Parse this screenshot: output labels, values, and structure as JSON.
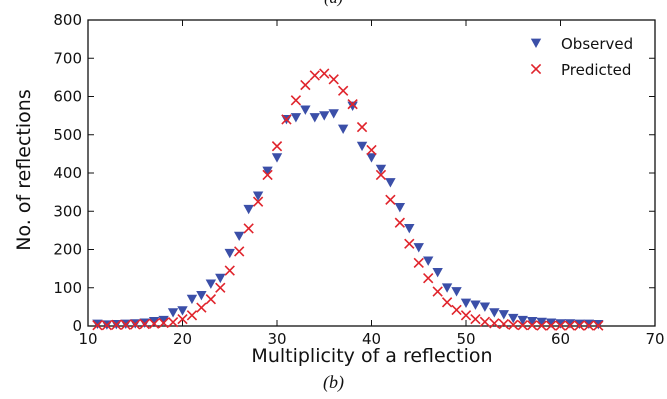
{
  "figure": {
    "top_caption": "(a)",
    "caption": "(b)"
  },
  "chart_data": {
    "type": "scatter",
    "title": "",
    "xlabel": "Multiplicity of a reflection",
    "ylabel": "No. of reflections",
    "xlim": [
      10,
      70
    ],
    "ylim": [
      0,
      800
    ],
    "x_ticks": [
      "10",
      "20",
      "30",
      "40",
      "50",
      "60",
      "70"
    ],
    "y_ticks": [
      "0",
      "100",
      "200",
      "300",
      "400",
      "500",
      "600",
      "700",
      "800"
    ],
    "grid": false,
    "legend_position": "top-right",
    "series": [
      {
        "name": "Observed",
        "marker": "triangle-down",
        "color": "#3b4fa8",
        "x": [
          11,
          12,
          13,
          14,
          15,
          16,
          17,
          18,
          19,
          20,
          21,
          22,
          23,
          24,
          25,
          26,
          27,
          28,
          29,
          30,
          31,
          32,
          33,
          34,
          35,
          36,
          37,
          38,
          39,
          40,
          41,
          42,
          43,
          44,
          45,
          46,
          47,
          48,
          49,
          50,
          51,
          52,
          53,
          54,
          55,
          56,
          57,
          58,
          59,
          60,
          61,
          62,
          63,
          64
        ],
        "y": [
          5,
          3,
          4,
          5,
          6,
          8,
          12,
          15,
          35,
          40,
          70,
          80,
          110,
          125,
          190,
          235,
          305,
          340,
          405,
          440,
          540,
          545,
          565,
          545,
          550,
          555,
          515,
          575,
          470,
          440,
          410,
          375,
          310,
          255,
          205,
          170,
          140,
          100,
          90,
          60,
          55,
          50,
          35,
          30,
          20,
          15,
          12,
          10,
          8,
          6,
          6,
          5,
          5,
          4
        ]
      },
      {
        "name": "Predicted",
        "marker": "x",
        "color": "#e0242c",
        "x": [
          11,
          12,
          13,
          14,
          15,
          16,
          17,
          18,
          19,
          20,
          21,
          22,
          23,
          24,
          25,
          26,
          27,
          28,
          29,
          30,
          31,
          32,
          33,
          34,
          35,
          36,
          37,
          38,
          39,
          40,
          41,
          42,
          43,
          44,
          45,
          46,
          47,
          48,
          49,
          50,
          51,
          52,
          53,
          54,
          55,
          56,
          57,
          58,
          59,
          60,
          61,
          62,
          63,
          64
        ],
        "y": [
          2,
          2,
          3,
          3,
          4,
          5,
          6,
          8,
          10,
          18,
          28,
          48,
          70,
          100,
          145,
          195,
          255,
          325,
          395,
          470,
          540,
          590,
          630,
          655,
          660,
          645,
          615,
          580,
          520,
          460,
          395,
          330,
          270,
          215,
          165,
          125,
          90,
          62,
          42,
          28,
          18,
          11,
          7,
          5,
          3,
          2,
          2,
          1,
          1,
          1,
          1,
          1,
          1,
          1
        ]
      }
    ]
  }
}
